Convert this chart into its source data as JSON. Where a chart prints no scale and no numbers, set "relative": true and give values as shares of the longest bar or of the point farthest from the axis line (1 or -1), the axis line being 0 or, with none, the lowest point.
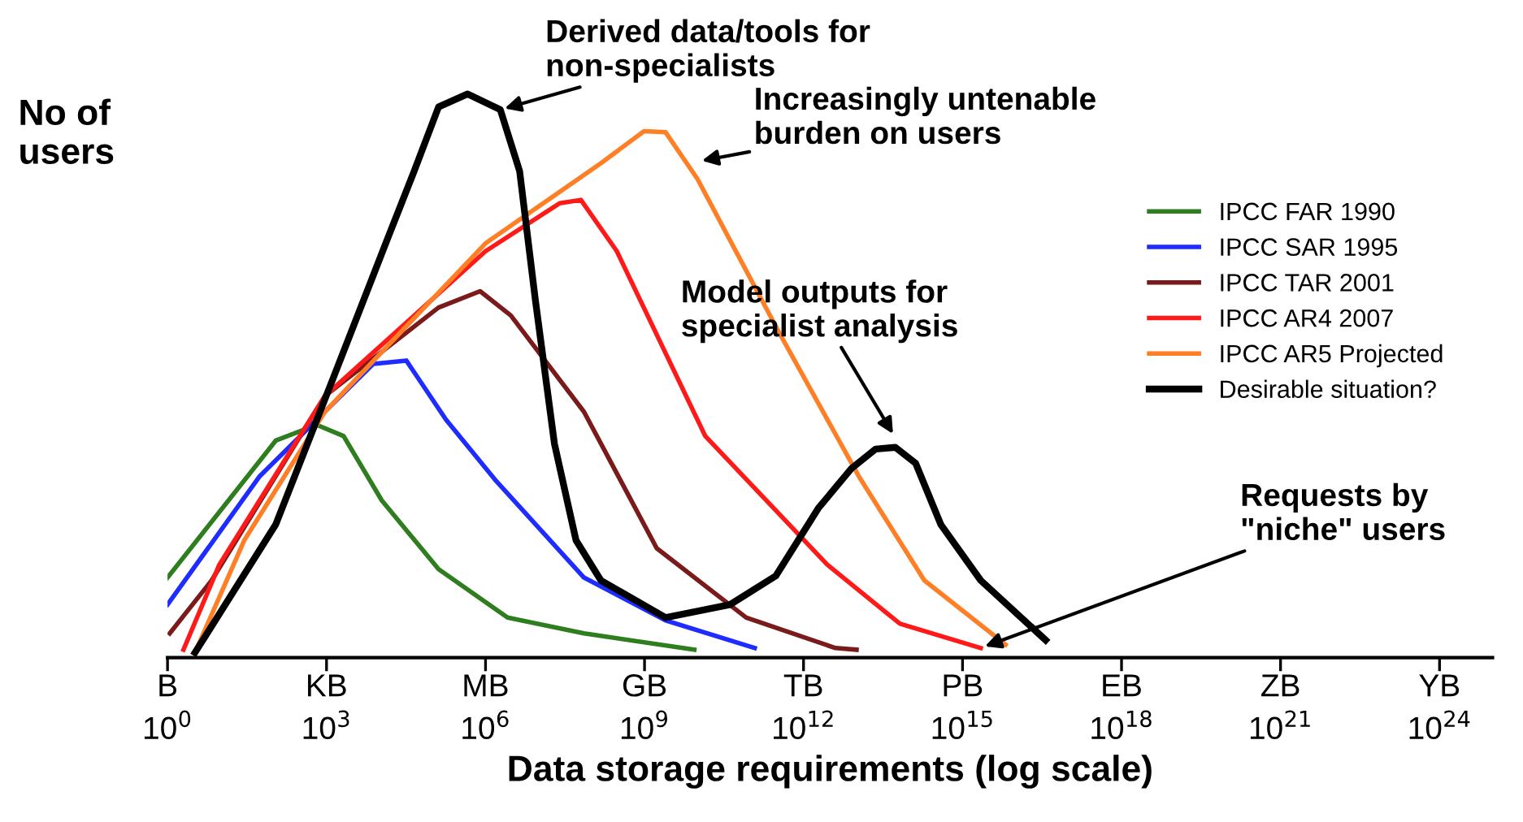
{
  "chart_data": {
    "type": "line",
    "relative": true,
    "log": "x",
    "ylabel": "No of\nusers",
    "xlabel": "Data storage requirements (log scale)",
    "xlim": [
      1,
      1e+25
    ],
    "xticks": [
      {
        "value": 1,
        "label": "10$^{0}$"
      },
      {
        "value": 1000.0,
        "label": "10$^{3}$"
      },
      {
        "value": 1000000.0,
        "label": "10$^{6}$"
      },
      {
        "value": 1000000000.0,
        "label": "10$^{9}$"
      },
      {
        "value": 1000000000000.0,
        "label": "10$^{12}$"
      },
      {
        "value": 1000000000000000.0,
        "label": "10$^{15}$"
      },
      {
        "value": 1e+18,
        "label": "10$^{18}$"
      },
      {
        "value": 1e+21,
        "label": "10$^{21}$"
      },
      {
        "value": 1e+24,
        "label": "10$^{24}$"
      }
    ],
    "legend": "right",
    "grid": false,
    "series": [
      {
        "name": "IPCC FAR 1990",
        "color": "#2e7d1e",
        "x": [
          1,
          110.0,
          650.0,
          2100.0,
          11000.0,
          130000.0,
          2600000.0,
          72000000.0,
          8700000000.0
        ],
        "values": [
          0.142,
          0.385,
          0.413,
          0.393,
          0.279,
          0.157,
          0.071,
          0.043,
          0.014
        ]
      },
      {
        "name": "IPCC SAR 1995",
        "color": "#1f2cff",
        "x": [
          1,
          55,
          7600.0,
          32000.0,
          180000.0,
          1500000.0,
          72000000.0,
          2500000000.0,
          120000000000.0
        ],
        "values": [
          0.094,
          0.322,
          0.521,
          0.527,
          0.422,
          0.316,
          0.142,
          0.066,
          0.017
        ]
      },
      {
        "name": "IPCC TAR 2001",
        "color": "#7a1a1a",
        "x": [
          1.1,
          6.8,
          930.0,
          130000.0,
          790000.0,
          3000000.0,
          72000000.0,
          1700000000.0,
          83000000000.0,
          4000000000000.0,
          10000000000000.0
        ],
        "values": [
          0.043,
          0.137,
          0.464,
          0.621,
          0.65,
          0.607,
          0.436,
          0.194,
          0.071,
          0.017,
          0.014
        ]
      },
      {
        "name": "IPCC AR4 2007",
        "color": "#ff1a1a",
        "x": [
          2.0,
          9.5,
          930.0,
          1000000.0,
          25000000.0,
          63000000.0,
          300000000.0,
          14000000000.0,
          2800000000000.0,
          66000000000000.0,
          2200000000000000.0
        ],
        "values": [
          0.014,
          0.165,
          0.464,
          0.721,
          0.806,
          0.812,
          0.721,
          0.393,
          0.165,
          0.06,
          0.017
        ]
      },
      {
        "name": "IPCC AR5 Projected",
        "color": "#ff7f27",
        "x": [
          3.3,
          28,
          930.0,
          1000000.0,
          150000000.0,
          980000000.0,
          2500000000.0,
          10000000000.0,
          340000000000.0,
          11000000000000.0,
          190000000000000.0,
          6500000000000000.0
        ],
        "values": [
          0.009,
          0.208,
          0.436,
          0.735,
          0.877,
          0.934,
          0.932,
          0.849,
          0.578,
          0.322,
          0.137,
          0.023
        ]
      },
      {
        "name": "Desirable situation?",
        "color": "#000000",
        "x": [
          3.3,
          110.0,
          1300.0,
          15000.0,
          45000.0,
          130000.0,
          460000.0,
          1900000.0,
          4400000.0,
          8700000.0,
          20000000.0,
          51000000.0,
          150000000.0,
          2500000000.0,
          41000000000.0,
          300000000000.0,
          1900000000000.0,
          8100000000000.0,
          23000000000000.0,
          54000000000000.0,
          130000000000000.0,
          390000000000000.0,
          2200000000000000.0,
          3.7e+16
        ],
        "values": [
          0.009,
          0.236,
          0.493,
          0.749,
          0.863,
          0.977,
          1.0,
          0.972,
          0.863,
          0.635,
          0.379,
          0.208,
          0.137,
          0.071,
          0.094,
          0.145,
          0.265,
          0.336,
          0.37,
          0.373,
          0.345,
          0.236,
          0.137,
          0.031
        ]
      }
    ],
    "annotations": [
      {
        "text": "Derived data/tools for\nnon-specialists",
        "x": 1900000.0,
        "y": 0.972
      },
      {
        "text": "Increasingly untenable\nburden on users",
        "x": 10000000000.0,
        "y": 0.88
      },
      {
        "text": "Model outputs for\nspecialist analysis",
        "x": 54000000000000.0,
        "y": 0.39
      },
      {
        "text": "Requests by\n\"niche\" users",
        "x": 2200000000000000.0,
        "y": 0.017
      },
      "B",
      "KB",
      "MB",
      "GB",
      "TB",
      "PB",
      "EB",
      "ZB",
      "YB"
    ]
  }
}
